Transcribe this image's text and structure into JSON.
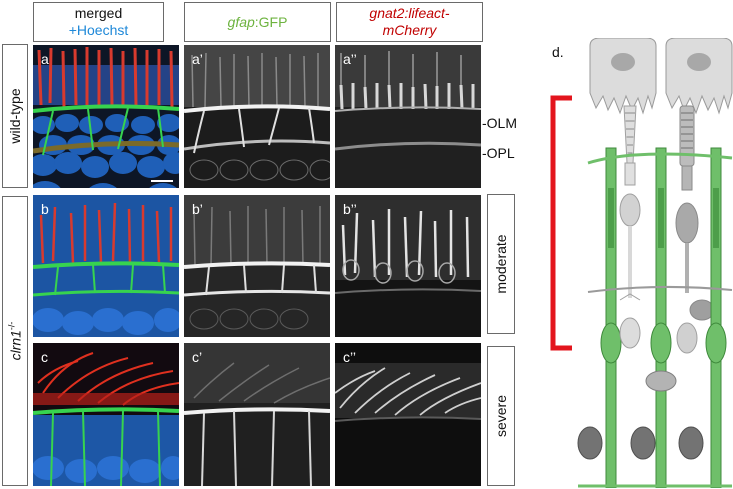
{
  "columns": {
    "merged": {
      "line1": "merged",
      "line2": "+Hoechst"
    },
    "gfap": {
      "italic": "gfap",
      "rest": ":GFP"
    },
    "gnat": {
      "line1": "gnat2:lifeact-",
      "line2": "mCherry"
    }
  },
  "rows": {
    "wildtype": "wild-type",
    "mutant_base": "clrn1",
    "mutant_sup": "-/-"
  },
  "severity": {
    "moderate": "moderate",
    "severe": "severe"
  },
  "layers": {
    "olm": "OLM",
    "opl": "OPL"
  },
  "panel_labels": {
    "a": "a",
    "a1": "a’",
    "a2": "a’’",
    "b": "b",
    "b1": "b’",
    "b2": "b’’",
    "c": "c",
    "c1": "c’",
    "c2": "c’’"
  },
  "diagram_label": "d.",
  "colors": {
    "hoechst": "#1e6fd0",
    "gfp": "#39d05a",
    "mcherry": "#d0201c",
    "muller_glia": "#6fbf6a",
    "rpe": "#d9d9d9",
    "bracket": "#e3151d"
  }
}
